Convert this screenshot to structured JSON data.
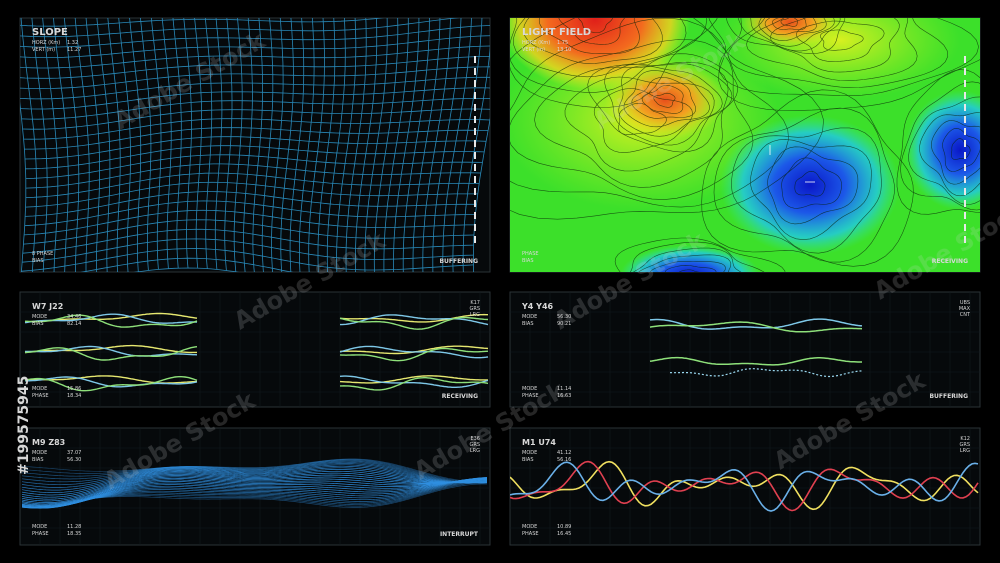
{
  "panels": [
    {
      "title": "SLOPE",
      "readouts": [
        {
          "label": "HORZ (Km)",
          "value": "1.32"
        },
        {
          "label": "VERT (m)",
          "value": "11.27"
        }
      ],
      "side_labels": [],
      "foot_readouts": [
        {
          "label": "8 PHASE"
        },
        {
          "label": "BIAS"
        }
      ],
      "status": "BUFFERING"
    },
    {
      "title": "LIGHT FIELD",
      "readouts": [
        {
          "label": "HORZ (Km)",
          "value": "1.75"
        },
        {
          "label": "VERT (m)",
          "value": "13.10"
        }
      ],
      "side_labels": [],
      "foot_readouts": [
        {
          "label": "PHASE"
        },
        {
          "label": "BIAS"
        }
      ],
      "status": "RECEIVING"
    },
    {
      "title": "W7 J22",
      "readouts": [
        {
          "label": "MODE",
          "value": "34.46"
        },
        {
          "label": "BIAS",
          "value": "82.14"
        }
      ],
      "side_labels": [
        "K17",
        "GRS",
        "LRG"
      ],
      "foot_readouts": [
        {
          "label": "MODE",
          "value": "15.86"
        },
        {
          "label": "PHASE",
          "value": "18.34"
        }
      ],
      "status": "RECEIVING"
    },
    {
      "title": "Y4 Y46",
      "readouts": [
        {
          "label": "MODE",
          "value": "56.30"
        },
        {
          "label": "BIAS",
          "value": "90.21"
        }
      ],
      "side_labels": [
        "UBS",
        "MAX",
        "CNT"
      ],
      "foot_readouts": [
        {
          "label": "MODE",
          "value": "11.14"
        },
        {
          "label": "PHASE",
          "value": "16.63"
        }
      ],
      "status": "BUFFERING"
    },
    {
      "title": "M9 Z83",
      "readouts": [
        {
          "label": "MODE",
          "value": "37.07"
        },
        {
          "label": "BIAS",
          "value": "56.30"
        }
      ],
      "side_labels": [
        "E36",
        "GRS",
        "LRG"
      ],
      "foot_readouts": [
        {
          "label": "MODE",
          "value": "11.28"
        },
        {
          "label": "PHASE",
          "value": "18.35"
        }
      ],
      "status": "INTERRUPT"
    },
    {
      "title": "M1 U74",
      "readouts": [
        {
          "label": "MODE",
          "value": "41.12"
        },
        {
          "label": "BIAS",
          "value": "56.16"
        }
      ],
      "side_labels": [
        "K12",
        "GRS",
        "LRG"
      ],
      "foot_readouts": [
        {
          "label": "MODE",
          "value": "10.89"
        },
        {
          "label": "PHASE",
          "value": "16.45"
        }
      ],
      "status": ""
    }
  ],
  "watermark": "Adobe Stock",
  "stock_id": "#199575945"
}
